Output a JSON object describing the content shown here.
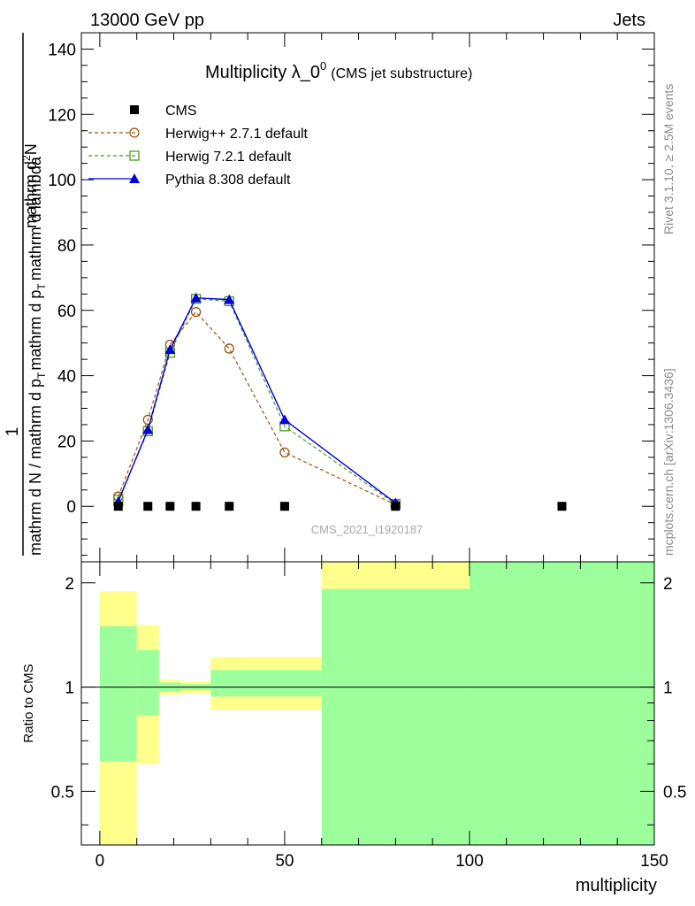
{
  "header": {
    "left": "13000 GeV pp",
    "right": "Jets"
  },
  "side_labels": {
    "top": "Rivet 3.1.10, ≥ 2.5M events",
    "bottom": "mcplots.cern.ch [arXiv:1306.3436]"
  },
  "chart_data": [
    {
      "type": "line",
      "title": "Multiplicity λ_0",
      "title_superscript": "0",
      "title_suffix": "(CMS jet substructure)",
      "watermark": "CMS_2021_I1920187",
      "ylabel": {
        "numerator": "1",
        "denominator": "mathrm d N / mathrm d p",
        "denominator_sub": "T",
        "denominator_rest": "mathrm d p",
        "denominator_sub2": "T",
        "denominator_tail": "mathrm d lambda",
        "fraction_num": "mathrm d",
        "fraction_num_sup": "2",
        "fraction_num_tail": "N"
      },
      "xlim": [
        -5,
        150
      ],
      "ylim": [
        -17,
        145
      ],
      "yticks": [
        0,
        20,
        40,
        60,
        80,
        100,
        120,
        140
      ],
      "legend_position": "top-left",
      "series": [
        {
          "name": "CMS",
          "color": "#000000",
          "marker": "square",
          "line": "none",
          "x": [
            5,
            13,
            19,
            26,
            35,
            50,
            80,
            125
          ],
          "y": [
            0,
            0,
            0,
            0,
            0,
            0,
            0,
            0
          ]
        },
        {
          "name": "Herwig++ 2.7.1 default",
          "color": "#a0520d",
          "marker": "open-circle",
          "line": "dashed",
          "x": [
            5,
            13,
            19,
            26,
            35,
            50,
            80
          ],
          "y": [
            3,
            26.5,
            49.5,
            59.5,
            48.3,
            16.5,
            0.5
          ]
        },
        {
          "name": "Herwig 7.2.1 default",
          "color": "#4a9a1a",
          "marker": "open-square",
          "line": "dashed",
          "x": [
            5,
            13,
            19,
            26,
            35,
            50,
            80
          ],
          "y": [
            2,
            23,
            47,
            63.5,
            62.8,
            24.5,
            0.7
          ]
        },
        {
          "name": "Pythia 8.308 default",
          "color": "#0000dd",
          "marker": "filled-triangle",
          "line": "solid",
          "x": [
            5,
            13,
            19,
            26,
            35,
            50,
            80
          ],
          "y": [
            1.5,
            23.5,
            48,
            63.8,
            63.3,
            26.5,
            1
          ]
        }
      ]
    },
    {
      "type": "area",
      "ylabel": "Ratio to CMS",
      "xlabel": "multiplicity",
      "xlim": [
        -5,
        150
      ],
      "ylim": [
        0.35,
        2.3
      ],
      "yticks": [
        0.5,
        1,
        2
      ],
      "ytick_labels": [
        "0.5",
        "1",
        "2"
      ],
      "xticks": [
        0,
        50,
        100,
        150
      ],
      "xtick_labels": [
        "0",
        "50",
        "100",
        "150"
      ],
      "reference_line": 1,
      "bands": [
        {
          "x0": 0,
          "x1": 10,
          "stat_lo": 0.61,
          "stat_hi": 1.5,
          "total_lo": 0.35,
          "total_hi": 1.89
        },
        {
          "x0": 10,
          "x1": 16,
          "stat_lo": 0.83,
          "stat_hi": 1.28,
          "total_lo": 0.6,
          "total_hi": 1.51
        },
        {
          "x0": 16,
          "x1": 22,
          "stat_lo": 0.97,
          "stat_hi": 1.03,
          "total_lo": 0.95,
          "total_hi": 1.05
        },
        {
          "x0": 22,
          "x1": 30,
          "stat_lo": 0.98,
          "stat_hi": 1.02,
          "total_lo": 0.96,
          "total_hi": 1.04
        },
        {
          "x0": 30,
          "x1": 60,
          "stat_lo": 0.94,
          "stat_hi": 1.12,
          "total_lo": 0.86,
          "total_hi": 1.22
        },
        {
          "x0": 60,
          "x1": 100,
          "stat_lo": 0.35,
          "stat_hi": 1.92,
          "total_lo": 0.35,
          "total_hi": 2.3
        },
        {
          "x0": 100,
          "x1": 150,
          "stat_lo": 0.35,
          "stat_hi": 2.3,
          "total_lo": 0.35,
          "total_hi": 2.3
        }
      ],
      "colors": {
        "stat": "#9cff9c",
        "total": "#ffff8c"
      }
    }
  ]
}
